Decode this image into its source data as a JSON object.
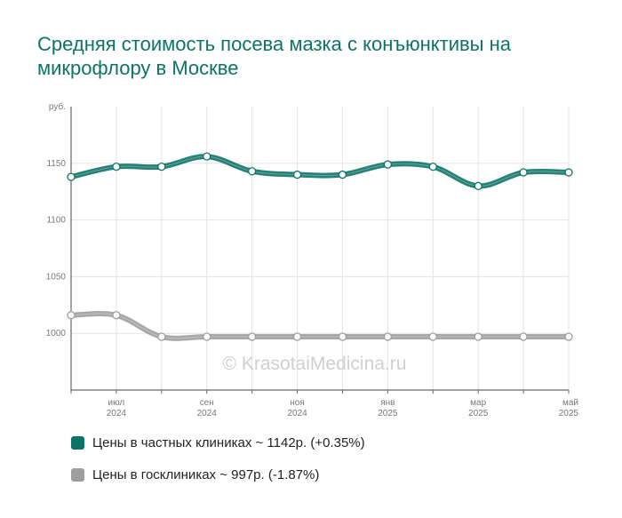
{
  "title": "Средняя стоимость посева мазка с конъюнктивы на микрофлору в Москве",
  "watermark": "© KrasotaiMedicina.ru",
  "legend": [
    {
      "label": "Цены в частных клиниках ~ 1142р. (+0.35%)",
      "color": "#0e7367"
    },
    {
      "label": "Цены в госклиниках ~ 997р. (-1.87%)",
      "color": "#9e9e9e"
    }
  ],
  "chart_data": {
    "type": "line",
    "y_unit": "руб.",
    "ylim": [
      950,
      1200
    ],
    "y_ticks": [
      "1000",
      "1050",
      "1100",
      "1150"
    ],
    "x_tick_labels": [
      {
        "month": "июл",
        "year": "2024"
      },
      {
        "month": "сен",
        "year": "2024"
      },
      {
        "month": "ноя",
        "year": "2024"
      },
      {
        "month": "янв",
        "year": "2025"
      },
      {
        "month": "мар",
        "year": "2025"
      },
      {
        "month": "май",
        "year": "2025"
      }
    ],
    "x": [
      "2024-06",
      "2024-07",
      "2024-08",
      "2024-09",
      "2024-10",
      "2024-11",
      "2024-12",
      "2025-01",
      "2025-02",
      "2025-03",
      "2025-04",
      "2025-05"
    ],
    "series": [
      {
        "color": "#0e7367",
        "values": [
          1138,
          1147,
          1147,
          1156,
          1143,
          1140,
          1140,
          1149,
          1147,
          1130,
          1142,
          1142
        ]
      },
      {
        "color": "#9e9e9e",
        "values": [
          1016,
          1016,
          997,
          997,
          997,
          997,
          997,
          997,
          997,
          997,
          997,
          997
        ]
      }
    ],
    "grid": true
  }
}
